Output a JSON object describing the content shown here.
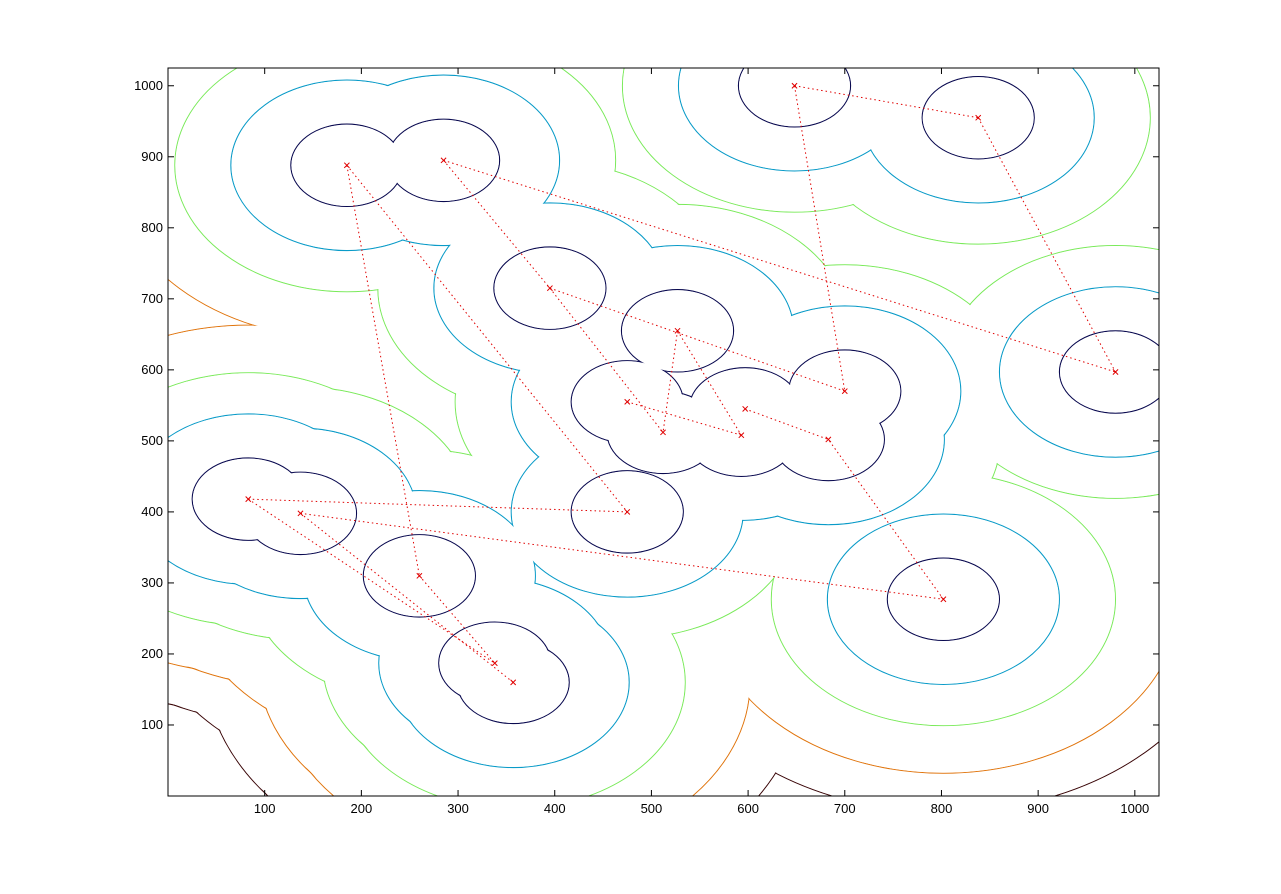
{
  "chart_data": {
    "type": "scatter",
    "title": "",
    "xlabel": "",
    "ylabel": "",
    "xlim": [
      0,
      1025
    ],
    "ylim": [
      0,
      1025
    ],
    "xticks": [
      100,
      200,
      300,
      400,
      500,
      600,
      700,
      800,
      900,
      1000
    ],
    "yticks": [
      100,
      200,
      300,
      400,
      500,
      600,
      700,
      800,
      900,
      1000
    ],
    "grid": false,
    "marker": "x",
    "marker_color": "#e00000",
    "points": [
      [
        185,
        888
      ],
      [
        285,
        895
      ],
      [
        395,
        715
      ],
      [
        527,
        655
      ],
      [
        475,
        555
      ],
      [
        512,
        512
      ],
      [
        597,
        545
      ],
      [
        593,
        508
      ],
      [
        700,
        570
      ],
      [
        683,
        502
      ],
      [
        475,
        400
      ],
      [
        83,
        418
      ],
      [
        137,
        398
      ],
      [
        260,
        310
      ],
      [
        338,
        187
      ],
      [
        357,
        160
      ],
      [
        648,
        1000
      ],
      [
        838,
        955
      ],
      [
        980,
        597
      ],
      [
        802,
        277
      ]
    ],
    "edges": [
      [
        0,
        10
      ],
      [
        0,
        13
      ],
      [
        1,
        2
      ],
      [
        1,
        18
      ],
      [
        2,
        5
      ],
      [
        2,
        8
      ],
      [
        3,
        5
      ],
      [
        3,
        7
      ],
      [
        4,
        7
      ],
      [
        6,
        9
      ],
      [
        11,
        10
      ],
      [
        11,
        14
      ],
      [
        12,
        15
      ],
      [
        12,
        19
      ],
      [
        13,
        14
      ],
      [
        16,
        17
      ],
      [
        16,
        8
      ],
      [
        17,
        18
      ],
      [
        19,
        9
      ]
    ],
    "edge_style": "dotted",
    "contours": [
      {
        "level": 1,
        "color": "#0a0a50",
        "radius": 58,
        "width": 1.1
      },
      {
        "level": 2,
        "color": "#0a9bc8",
        "radius": 120,
        "width": 1.1
      },
      {
        "level": 3,
        "color": "#7aea5a",
        "radius": 178,
        "width": 1.0
      },
      {
        "level": 4,
        "color": "#e0740c",
        "radius": 245,
        "width": 1.0
      },
      {
        "level": 5,
        "color": "#3a0608",
        "radius": 300,
        "width": 1.0
      }
    ]
  }
}
